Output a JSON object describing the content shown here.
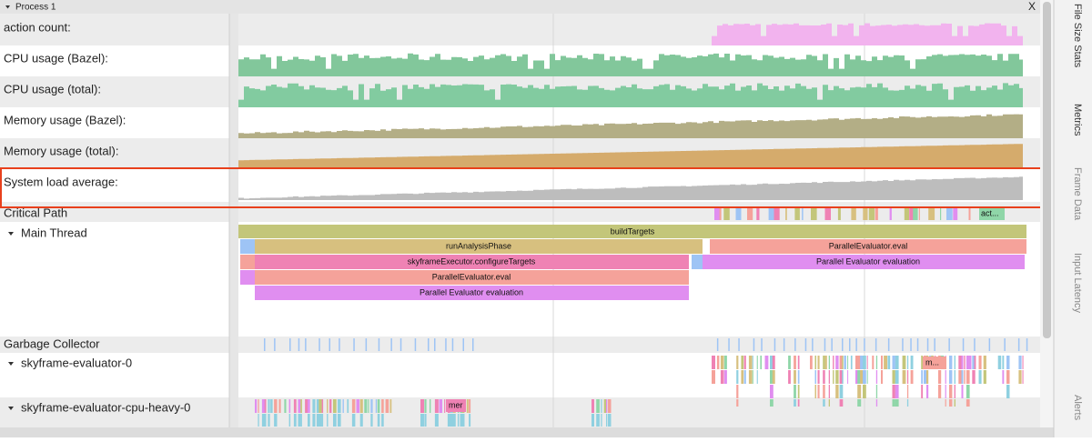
{
  "header": {
    "title": "Process 1",
    "close": "X"
  },
  "tracks": [
    "action count:",
    "CPU usage (Bazel):",
    "CPU usage (total):",
    "Memory usage (Bazel):",
    "Memory usage (total):",
    "System load average:",
    "Critical Path",
    "Main Thread",
    "Garbage Collector",
    "skyframe-evaluator-0",
    "skyframe-evaluator-cpu-heavy-0"
  ],
  "slices": [
    "buildTargets",
    "runAnalysisPhase",
    "ParallelEvaluator.eval",
    "skyframeExecutor.configureTargets",
    "Parallel Evaluator evaluation",
    "ParallelEvaluator.eval",
    "Parallel Evaluator evaluation",
    "act...",
    "m...",
    "mer"
  ],
  "side_tabs": [
    "File Size Stats",
    "Metrics",
    "Frame Data",
    "Input Latency",
    "Alerts"
  ]
}
